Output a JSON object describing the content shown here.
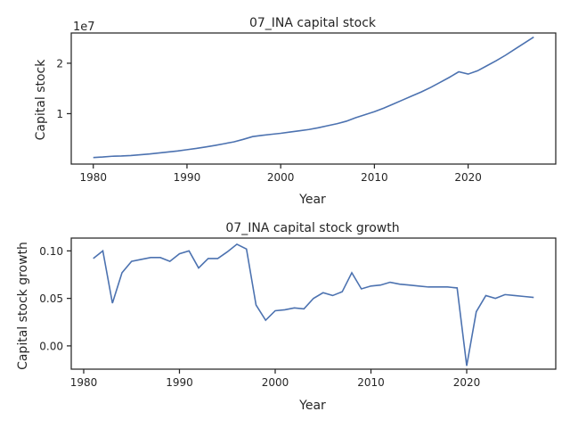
{
  "colors": {
    "line": "#4c72b0",
    "axis": "#262626",
    "background": "#ffffff"
  },
  "chart_data": [
    {
      "type": "line",
      "title": "07_INA capital stock",
      "xlabel": "Year",
      "ylabel": "Capital stock",
      "offset_label": "1e7",
      "xlim": [
        1977.65,
        2029.35
      ],
      "ylim": [
        0.0,
        2.6
      ],
      "xticks": [
        1980,
        1990,
        2000,
        2010,
        2020
      ],
      "yticks": [
        1,
        2
      ],
      "ytick_labels": [
        "1",
        "2"
      ],
      "grid": false,
      "x": [
        1980,
        1981,
        1982,
        1983,
        1984,
        1985,
        1986,
        1987,
        1988,
        1989,
        1990,
        1991,
        1992,
        1993,
        1994,
        1995,
        1996,
        1997,
        1998,
        1999,
        2000,
        2001,
        2002,
        2003,
        2004,
        2005,
        2006,
        2007,
        2008,
        2009,
        2010,
        2011,
        2012,
        2013,
        2014,
        2015,
        2016,
        2017,
        2018,
        2019,
        2020,
        2021,
        2022,
        2023,
        2024,
        2025,
        2026,
        2027
      ],
      "series": [
        {
          "values": [
            0.13,
            0.14,
            0.155,
            0.16,
            0.17,
            0.185,
            0.2,
            0.22,
            0.24,
            0.26,
            0.285,
            0.31,
            0.34,
            0.37,
            0.405,
            0.44,
            0.49,
            0.545,
            0.57,
            0.59,
            0.61,
            0.635,
            0.66,
            0.685,
            0.72,
            0.76,
            0.8,
            0.85,
            0.92,
            0.98,
            1.04,
            1.11,
            1.19,
            1.27,
            1.35,
            1.43,
            1.52,
            1.62,
            1.72,
            1.83,
            1.785,
            1.85,
            1.95,
            2.05,
            2.16,
            2.28,
            2.4,
            2.52
          ]
        }
      ]
    },
    {
      "type": "line",
      "title": "07_INA capital stock growth",
      "xlabel": "Year",
      "ylabel": "Capital stock growth",
      "xlim": [
        1978.7,
        2029.3
      ],
      "ylim": [
        -0.0245,
        0.1135
      ],
      "xticks": [
        1980,
        1990,
        2000,
        2010,
        2020
      ],
      "yticks": [
        0.0,
        0.05,
        0.1
      ],
      "ytick_labels": [
        "0.00",
        "0.05",
        "0.10"
      ],
      "grid": false,
      "x": [
        1981,
        1982,
        1983,
        1984,
        1985,
        1986,
        1987,
        1988,
        1989,
        1990,
        1991,
        1992,
        1993,
        1994,
        1995,
        1996,
        1997,
        1998,
        1999,
        2000,
        2001,
        2002,
        2003,
        2004,
        2005,
        2006,
        2007,
        2008,
        2009,
        2010,
        2011,
        2012,
        2013,
        2014,
        2015,
        2016,
        2017,
        2018,
        2019,
        2020,
        2021,
        2022,
        2023,
        2024,
        2025,
        2026,
        2027
      ],
      "series": [
        {
          "values": [
            0.092,
            0.1,
            0.045,
            0.077,
            0.089,
            0.091,
            0.093,
            0.093,
            0.089,
            0.097,
            0.1,
            0.082,
            0.092,
            0.092,
            0.099,
            0.107,
            0.102,
            0.043,
            0.027,
            0.037,
            0.038,
            0.04,
            0.039,
            0.05,
            0.056,
            0.053,
            0.057,
            0.077,
            0.06,
            0.063,
            0.064,
            0.067,
            0.065,
            0.064,
            0.063,
            0.062,
            0.062,
            0.062,
            0.061,
            -0.021,
            0.036,
            0.053,
            0.05,
            0.054,
            0.053,
            0.052,
            0.051
          ]
        }
      ]
    }
  ]
}
